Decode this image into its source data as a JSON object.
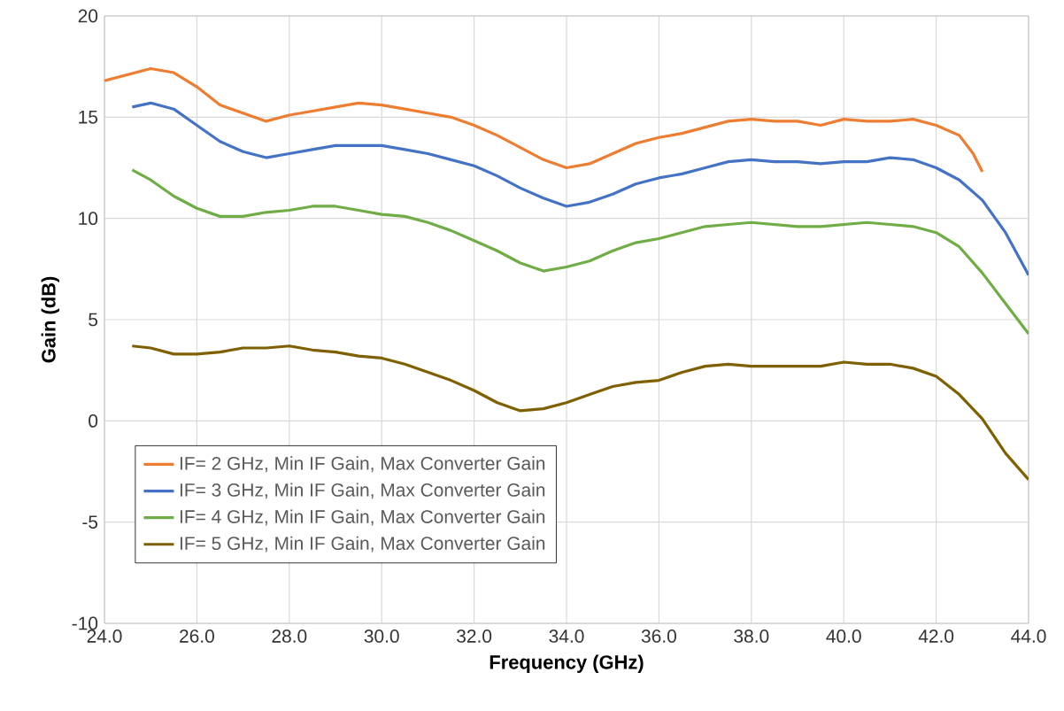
{
  "chart_data": {
    "type": "line",
    "xlabel": "Frequency (GHz)",
    "ylabel": "Gain (dB)",
    "xlim": [
      24,
      44
    ],
    "ylim": [
      -10,
      20
    ],
    "xticks": [
      {
        "value": 24,
        "label": "24.0"
      },
      {
        "value": 26,
        "label": "26.0"
      },
      {
        "value": 28,
        "label": "28.0"
      },
      {
        "value": 30,
        "label": "30.0"
      },
      {
        "value": 32,
        "label": "32.0"
      },
      {
        "value": 34,
        "label": "34.0"
      },
      {
        "value": 36,
        "label": "36.0"
      },
      {
        "value": 38,
        "label": "38.0"
      },
      {
        "value": 40,
        "label": "40.0"
      },
      {
        "value": 42,
        "label": "42.0"
      },
      {
        "value": 44,
        "label": "44.0"
      }
    ],
    "yticks": [
      -10,
      -5,
      0,
      5,
      10,
      15,
      20
    ],
    "grid": true,
    "legend": "bottom left",
    "series": [
      {
        "name": "IF= 2 GHz, Min IF Gain, Max Converter Gain",
        "color": "#ed7d31",
        "x": [
          24.0,
          24.5,
          25.0,
          25.5,
          26.0,
          26.5,
          27.0,
          27.5,
          28.0,
          28.5,
          29.0,
          29.5,
          30.0,
          30.5,
          31.0,
          31.5,
          32.0,
          32.5,
          33.0,
          33.5,
          34.0,
          34.5,
          35.0,
          35.5,
          36.0,
          36.5,
          37.0,
          37.5,
          38.0,
          38.5,
          39.0,
          39.5,
          40.0,
          40.5,
          41.0,
          41.5,
          42.0,
          42.5,
          42.8,
          43.0
        ],
        "values": [
          16.8,
          17.1,
          17.4,
          17.2,
          16.5,
          15.6,
          15.2,
          14.8,
          15.1,
          15.3,
          15.5,
          15.7,
          15.6,
          15.4,
          15.2,
          15.0,
          14.6,
          14.1,
          13.5,
          12.9,
          12.5,
          12.7,
          13.2,
          13.7,
          14.0,
          14.2,
          14.5,
          14.8,
          14.9,
          14.8,
          14.8,
          14.6,
          14.9,
          14.8,
          14.8,
          14.9,
          14.6,
          14.1,
          13.2,
          12.3
        ]
      },
      {
        "name": "IF= 3 GHz, Min IF Gain, Max Converter Gain",
        "color": "#4472c4",
        "x": [
          24.6,
          25.0,
          25.5,
          26.0,
          26.5,
          27.0,
          27.5,
          28.0,
          28.5,
          29.0,
          29.5,
          30.0,
          30.5,
          31.0,
          31.5,
          32.0,
          32.5,
          33.0,
          33.5,
          34.0,
          34.5,
          35.0,
          35.5,
          36.0,
          36.5,
          37.0,
          37.5,
          38.0,
          38.5,
          39.0,
          39.5,
          40.0,
          40.5,
          41.0,
          41.5,
          42.0,
          42.5,
          43.0,
          43.5,
          44.0
        ],
        "values": [
          15.5,
          15.7,
          15.4,
          14.6,
          13.8,
          13.3,
          13.0,
          13.2,
          13.4,
          13.6,
          13.6,
          13.6,
          13.4,
          13.2,
          12.9,
          12.6,
          12.1,
          11.5,
          11.0,
          10.6,
          10.8,
          11.2,
          11.7,
          12.0,
          12.2,
          12.5,
          12.8,
          12.9,
          12.8,
          12.8,
          12.7,
          12.8,
          12.8,
          13.0,
          12.9,
          12.5,
          11.9,
          10.9,
          9.3,
          7.2
        ]
      },
      {
        "name": "IF= 4 GHz, Min IF Gain, Max Converter Gain",
        "color": "#70ad47",
        "x": [
          24.6,
          25.0,
          25.5,
          26.0,
          26.5,
          27.0,
          27.5,
          28.0,
          28.5,
          29.0,
          29.5,
          30.0,
          30.5,
          31.0,
          31.5,
          32.0,
          32.5,
          33.0,
          33.5,
          34.0,
          34.5,
          35.0,
          35.5,
          36.0,
          36.5,
          37.0,
          37.5,
          38.0,
          38.5,
          39.0,
          39.5,
          40.0,
          40.5,
          41.0,
          41.5,
          42.0,
          42.5,
          43.0,
          43.5,
          44.0
        ],
        "values": [
          12.4,
          11.9,
          11.1,
          10.5,
          10.1,
          10.1,
          10.3,
          10.4,
          10.6,
          10.6,
          10.4,
          10.2,
          10.1,
          9.8,
          9.4,
          8.9,
          8.4,
          7.8,
          7.4,
          7.6,
          7.9,
          8.4,
          8.8,
          9.0,
          9.3,
          9.6,
          9.7,
          9.8,
          9.7,
          9.6,
          9.6,
          9.7,
          9.8,
          9.7,
          9.6,
          9.3,
          8.6,
          7.3,
          5.8,
          4.3
        ]
      },
      {
        "name": "IF= 5 GHz, Min IF Gain, Max Converter Gain",
        "color": "#7f6000",
        "x": [
          24.6,
          25.0,
          25.5,
          26.0,
          26.5,
          27.0,
          27.5,
          28.0,
          28.5,
          29.0,
          29.5,
          30.0,
          30.5,
          31.0,
          31.5,
          32.0,
          32.5,
          33.0,
          33.5,
          34.0,
          34.5,
          35.0,
          35.5,
          36.0,
          36.5,
          37.0,
          37.5,
          38.0,
          38.5,
          39.0,
          39.5,
          40.0,
          40.5,
          41.0,
          41.5,
          42.0,
          42.5,
          43.0,
          43.5,
          44.0
        ],
        "values": [
          3.7,
          3.6,
          3.3,
          3.3,
          3.4,
          3.6,
          3.6,
          3.7,
          3.5,
          3.4,
          3.2,
          3.1,
          2.8,
          2.4,
          2.0,
          1.5,
          0.9,
          0.5,
          0.6,
          0.9,
          1.3,
          1.7,
          1.9,
          2.0,
          2.4,
          2.7,
          2.8,
          2.7,
          2.7,
          2.7,
          2.7,
          2.9,
          2.8,
          2.8,
          2.6,
          2.2,
          1.3,
          0.1,
          -1.6,
          -2.9
        ]
      }
    ]
  }
}
